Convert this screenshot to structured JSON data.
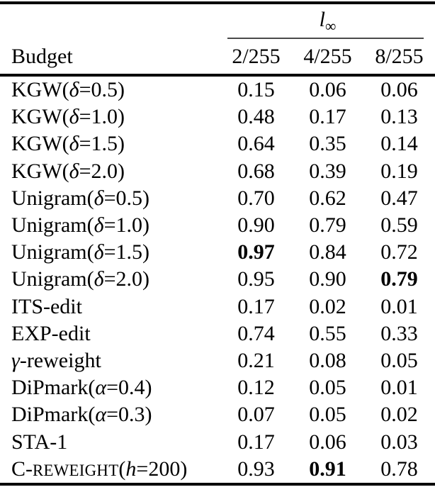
{
  "colors": {
    "background": "#ffffff",
    "text": "#000000",
    "thick_rule": "#000000",
    "cmidrule": "#4a4a4a"
  },
  "table": {
    "group_header": {
      "main": "l",
      "sub": "∞"
    },
    "row_header": "Budget",
    "columns": [
      "2/255",
      "4/255",
      "8/255"
    ],
    "rows": [
      {
        "label": [
          {
            "t": "KGW(",
            "s": "p"
          },
          {
            "t": "δ",
            "s": "i"
          },
          {
            "t": "=0.5)",
            "s": "p"
          }
        ],
        "values": [
          {
            "v": "0.15",
            "b": false
          },
          {
            "v": "0.06",
            "b": false
          },
          {
            "v": "0.06",
            "b": false
          }
        ]
      },
      {
        "label": [
          {
            "t": "KGW(",
            "s": "p"
          },
          {
            "t": "δ",
            "s": "i"
          },
          {
            "t": "=1.0)",
            "s": "p"
          }
        ],
        "values": [
          {
            "v": "0.48",
            "b": false
          },
          {
            "v": "0.17",
            "b": false
          },
          {
            "v": "0.13",
            "b": false
          }
        ]
      },
      {
        "label": [
          {
            "t": "KGW(",
            "s": "p"
          },
          {
            "t": "δ",
            "s": "i"
          },
          {
            "t": "=1.5)",
            "s": "p"
          }
        ],
        "values": [
          {
            "v": "0.64",
            "b": false
          },
          {
            "v": "0.35",
            "b": false
          },
          {
            "v": "0.14",
            "b": false
          }
        ]
      },
      {
        "label": [
          {
            "t": "KGW(",
            "s": "p"
          },
          {
            "t": "δ",
            "s": "i"
          },
          {
            "t": "=2.0)",
            "s": "p"
          }
        ],
        "values": [
          {
            "v": "0.68",
            "b": false
          },
          {
            "v": "0.39",
            "b": false
          },
          {
            "v": "0.19",
            "b": false
          }
        ]
      },
      {
        "label": [
          {
            "t": "Unigram(",
            "s": "p"
          },
          {
            "t": "δ",
            "s": "i"
          },
          {
            "t": "=0.5)",
            "s": "p"
          }
        ],
        "values": [
          {
            "v": "0.70",
            "b": false
          },
          {
            "v": "0.62",
            "b": false
          },
          {
            "v": "0.47",
            "b": false
          }
        ]
      },
      {
        "label": [
          {
            "t": "Unigram(",
            "s": "p"
          },
          {
            "t": "δ",
            "s": "i"
          },
          {
            "t": "=1.0)",
            "s": "p"
          }
        ],
        "values": [
          {
            "v": "0.90",
            "b": false
          },
          {
            "v": "0.79",
            "b": false
          },
          {
            "v": "0.59",
            "b": false
          }
        ]
      },
      {
        "label": [
          {
            "t": "Unigram(",
            "s": "p"
          },
          {
            "t": "δ",
            "s": "i"
          },
          {
            "t": "=1.5)",
            "s": "p"
          }
        ],
        "values": [
          {
            "v": "0.97",
            "b": true
          },
          {
            "v": "0.84",
            "b": false
          },
          {
            "v": "0.72",
            "b": false
          }
        ]
      },
      {
        "label": [
          {
            "t": "Unigram(",
            "s": "p"
          },
          {
            "t": "δ",
            "s": "i"
          },
          {
            "t": "=2.0)",
            "s": "p"
          }
        ],
        "values": [
          {
            "v": "0.95",
            "b": false
          },
          {
            "v": "0.90",
            "b": false
          },
          {
            "v": "0.79",
            "b": true
          }
        ]
      },
      {
        "label": [
          {
            "t": "ITS-edit",
            "s": "p"
          }
        ],
        "values": [
          {
            "v": "0.17",
            "b": false
          },
          {
            "v": "0.02",
            "b": false
          },
          {
            "v": "0.01",
            "b": false
          }
        ]
      },
      {
        "label": [
          {
            "t": "EXP-edit",
            "s": "p"
          }
        ],
        "values": [
          {
            "v": "0.74",
            "b": false
          },
          {
            "v": "0.55",
            "b": false
          },
          {
            "v": "0.33",
            "b": false
          }
        ]
      },
      {
        "label": [
          {
            "t": "γ",
            "s": "i"
          },
          {
            "t": "-reweight",
            "s": "p"
          }
        ],
        "values": [
          {
            "v": "0.21",
            "b": false
          },
          {
            "v": "0.08",
            "b": false
          },
          {
            "v": "0.05",
            "b": false
          }
        ]
      },
      {
        "label": [
          {
            "t": "DiPmark(",
            "s": "p"
          },
          {
            "t": "α",
            "s": "i"
          },
          {
            "t": "=0.4)",
            "s": "p"
          }
        ],
        "values": [
          {
            "v": "0.12",
            "b": false
          },
          {
            "v": "0.05",
            "b": false
          },
          {
            "v": "0.01",
            "b": false
          }
        ]
      },
      {
        "label": [
          {
            "t": "DiPmark(",
            "s": "p"
          },
          {
            "t": "α",
            "s": "i"
          },
          {
            "t": "=0.3)",
            "s": "p"
          }
        ],
        "values": [
          {
            "v": "0.07",
            "b": false
          },
          {
            "v": "0.05",
            "b": false
          },
          {
            "v": "0.02",
            "b": false
          }
        ]
      },
      {
        "label": [
          {
            "t": "STA-1",
            "s": "p"
          }
        ],
        "values": [
          {
            "v": "0.17",
            "b": false
          },
          {
            "v": "0.06",
            "b": false
          },
          {
            "v": "0.03",
            "b": false
          }
        ]
      },
      {
        "label": [
          {
            "t": "C-",
            "s": "p"
          },
          {
            "t": "REWEIGHT",
            "s": "sc"
          },
          {
            "t": "(",
            "s": "p"
          },
          {
            "t": "h",
            "s": "i"
          },
          {
            "t": "=200)",
            "s": "p"
          }
        ],
        "values": [
          {
            "v": "0.93",
            "b": false
          },
          {
            "v": "0.91",
            "b": true
          },
          {
            "v": "0.78",
            "b": false
          }
        ]
      }
    ]
  }
}
